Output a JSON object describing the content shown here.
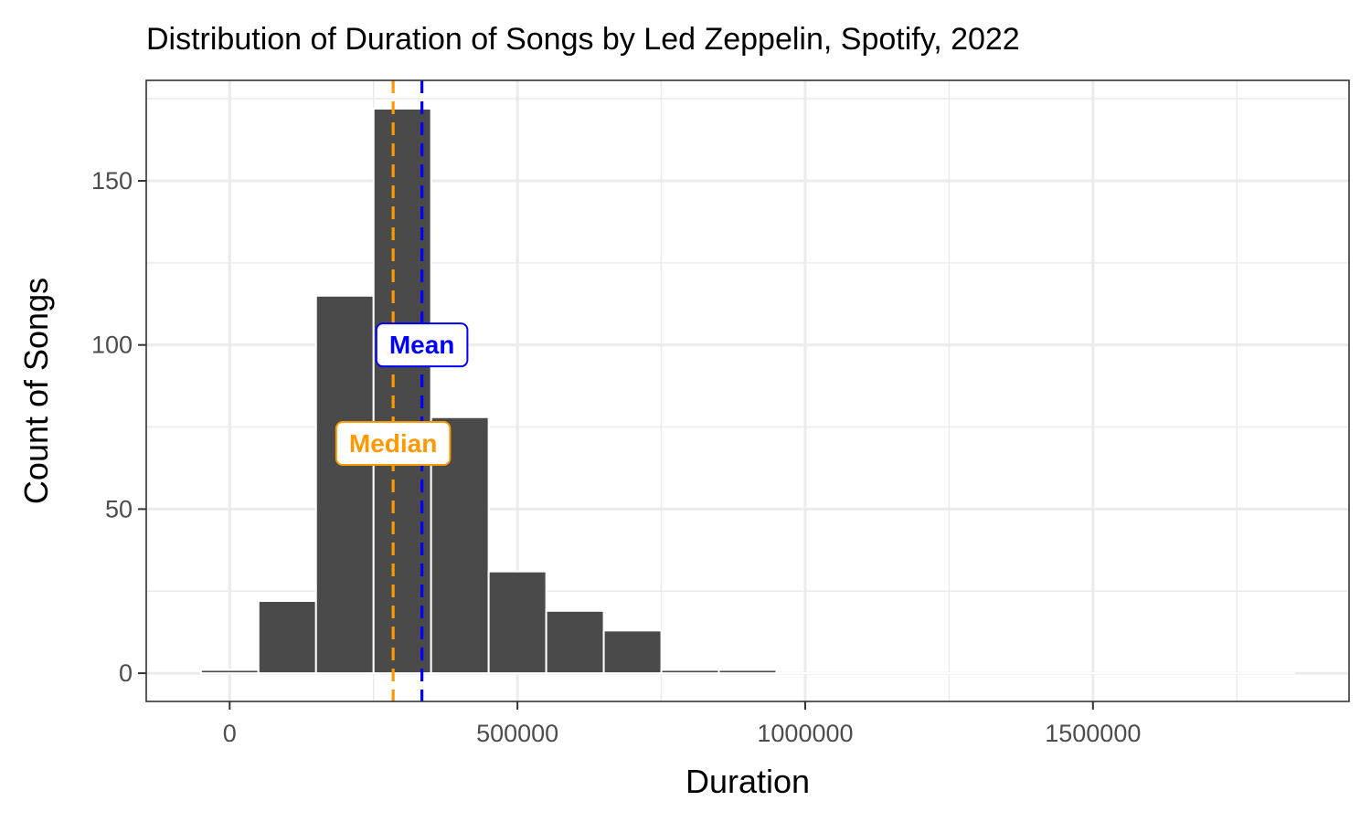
{
  "chart_data": {
    "type": "bar",
    "title": "Distribution of Duration of Songs by Led Zeppelin, Spotify, 2022",
    "xlabel": "Duration",
    "ylabel": "Count of Songs",
    "xlim": [
      -145000,
      1945000
    ],
    "ylim": [
      -8.6,
      180.6
    ],
    "x_ticks": [
      0,
      500000,
      1000000,
      1500000
    ],
    "x_tick_labels": [
      "0",
      "500000",
      "1000000",
      "1500000"
    ],
    "y_ticks": [
      0,
      50,
      100,
      150
    ],
    "y_tick_labels": [
      "0",
      "50",
      "100",
      "150"
    ],
    "grid": true,
    "bin_width": 100000,
    "bin_centers": [
      0,
      100000,
      200000,
      300000,
      400000,
      500000,
      600000,
      700000,
      800000,
      900000,
      1000000,
      1100000,
      1200000,
      1300000,
      1400000,
      1500000,
      1600000,
      1700000,
      1800000
    ],
    "values": [
      1,
      22,
      115,
      172,
      78,
      31,
      19,
      13,
      1,
      1,
      0,
      0,
      0,
      0,
      0,
      0,
      0,
      0,
      0
    ],
    "reference_lines": [
      {
        "label": "Median",
        "x": 284000,
        "color": "#ff9900",
        "label_y": 70
      },
      {
        "label": "Mean",
        "x": 334000,
        "color": "#0000ff",
        "label_y": 100
      }
    ]
  }
}
